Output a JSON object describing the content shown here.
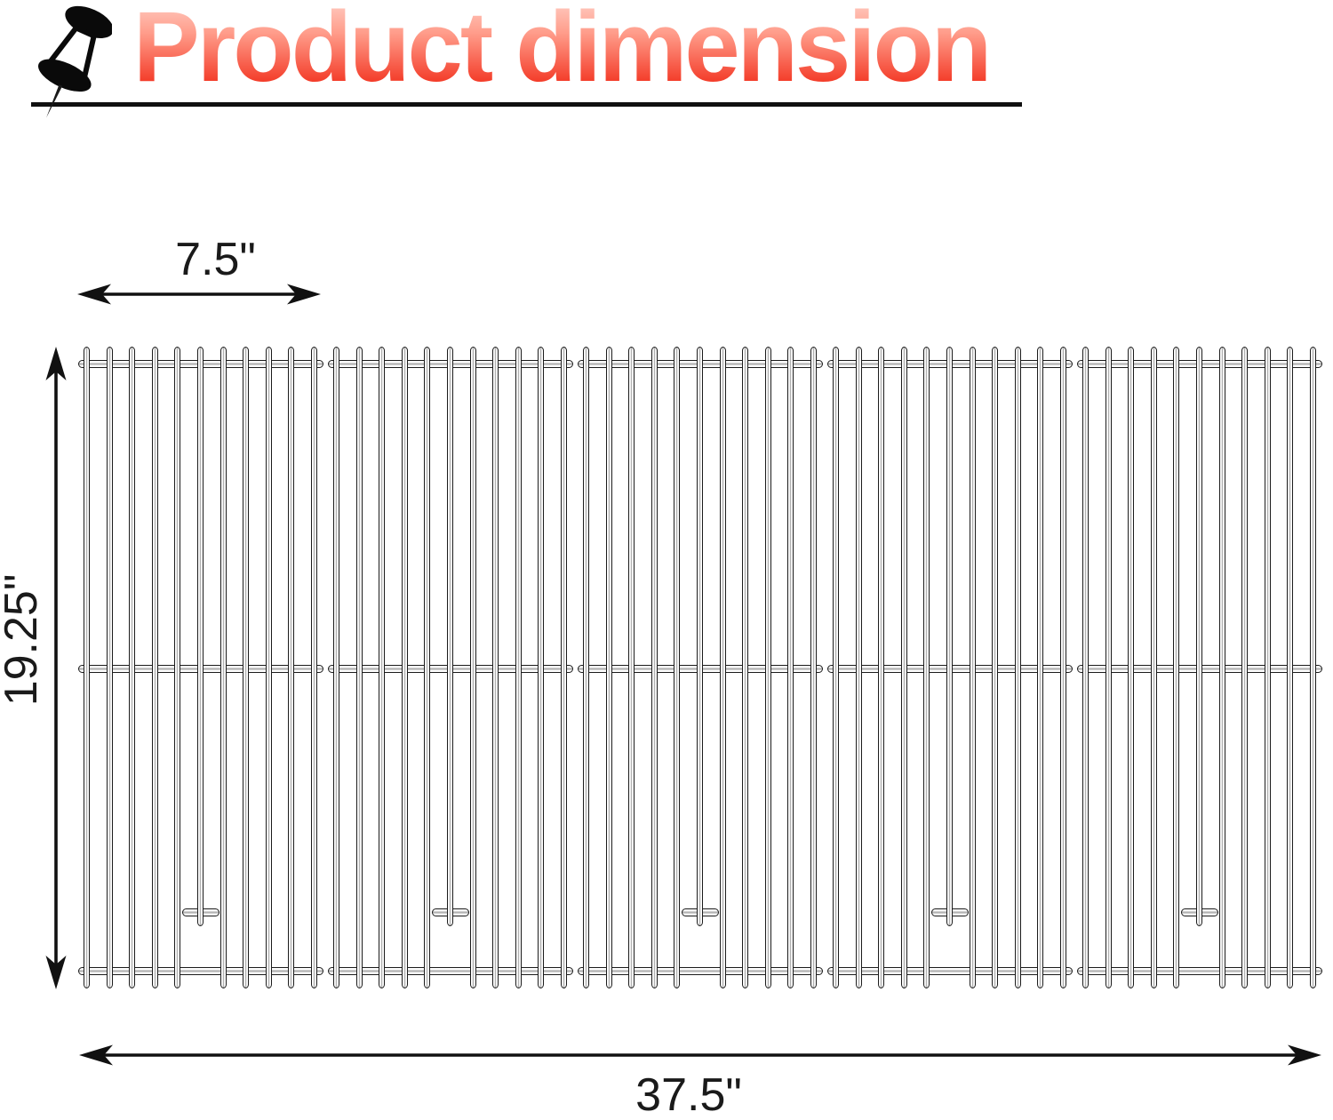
{
  "header": {
    "title": "Product dimension"
  },
  "labels": {
    "panel_width": "7.5\"",
    "depth": "19.25\"",
    "total_width": "37.5\""
  },
  "grate": {
    "panels": 5,
    "bars_per_panel": 11,
    "short_bar_index": 5,
    "cross_rods_per_panel": 3
  },
  "colors": {
    "title_gradient_top": "#ffddd6",
    "title_gradient_bottom": "#e81300",
    "line_color": "#111111",
    "metal_outline": "#1b1b1b",
    "metal_shade": "#b3b3b3"
  }
}
